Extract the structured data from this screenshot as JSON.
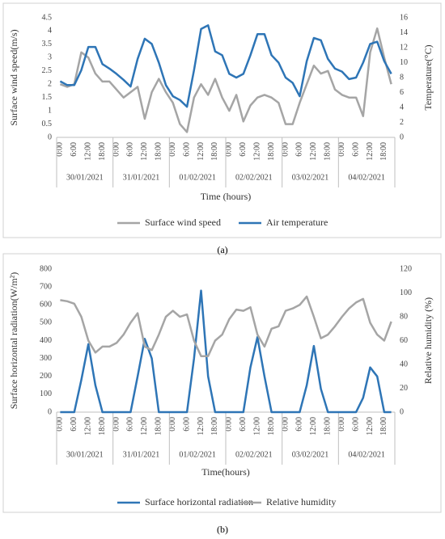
{
  "chart_data": [
    {
      "type": "line",
      "panel_label": "(a)",
      "xlabel": "Time (hours)",
      "ylabel": "Surface wind speed(m/s)",
      "y2label": "Temperature(°C)",
      "categories": [
        "0:00",
        null,
        "6:00",
        null,
        "12:00",
        null,
        "18:00",
        null,
        "0:00",
        null,
        "6:00",
        null,
        "12:00",
        null,
        "18:00",
        null,
        "0:00",
        null,
        "6:00",
        null,
        "12:00",
        null,
        "18:00",
        null,
        "0:00",
        null,
        "6:00",
        null,
        "12:00",
        null,
        "18:00",
        null,
        "0:00",
        null,
        "6:00",
        null,
        "12:00",
        null,
        "18:00",
        null,
        "0:00",
        null,
        "6:00",
        null,
        "12:00",
        null,
        "18:00",
        null
      ],
      "groups": [
        "30/01/2021",
        "31/01/2021",
        "01/02/2021",
        "02/02/2021",
        "03/02/2021",
        "04/02/2021"
      ],
      "ylim": [
        0,
        4.5
      ],
      "yticks": [
        0,
        0.5,
        1,
        1.5,
        2,
        2.5,
        3,
        3.5,
        4,
        4.5
      ],
      "y2lim": [
        0,
        16
      ],
      "y2ticks": [
        0,
        2,
        4,
        6,
        8,
        10,
        12,
        14,
        16
      ],
      "series": [
        {
          "name": "Surface wind speed",
          "color": "#a5a5a5",
          "axis": "y",
          "values": [
            2.0,
            1.9,
            2.0,
            3.2,
            3.0,
            2.4,
            2.1,
            2.1,
            1.8,
            1.5,
            1.7,
            1.9,
            0.7,
            1.7,
            2.2,
            1.7,
            1.3,
            0.5,
            0.2,
            1.5,
            2.0,
            1.6,
            2.2,
            1.5,
            1.0,
            1.6,
            0.6,
            1.2,
            1.5,
            1.6,
            1.5,
            1.3,
            0.5,
            0.5,
            1.3,
            2.0,
            2.7,
            2.4,
            2.5,
            1.8,
            1.6,
            1.5,
            1.5,
            0.8,
            3.2,
            4.1,
            3.0,
            2.0
          ]
        },
        {
          "name": "Air temperature",
          "color": "#2e75b6",
          "axis": "y2",
          "values": [
            7.5,
            7.0,
            7.0,
            9.0,
            12.1,
            12.1,
            9.8,
            9.2,
            8.5,
            7.7,
            6.8,
            10.5,
            13.2,
            12.5,
            10.0,
            7.0,
            5.5,
            5.0,
            4.1,
            9.0,
            14.5,
            15.0,
            11.5,
            11.0,
            8.5,
            8.0,
            8.5,
            11.0,
            13.8,
            13.8,
            11.0,
            10.0,
            8.0,
            7.3,
            5.5,
            10.2,
            13.3,
            13.0,
            10.5,
            9.2,
            8.8,
            7.8,
            8.0,
            10.0,
            12.5,
            12.8,
            10.2,
            8.5
          ]
        }
      ]
    },
    {
      "type": "line",
      "panel_label": "(b)",
      "xlabel": "Time(hours)",
      "ylabel": "Surface horizontal radiation(W/m²)",
      "y2label": "Relative humidity (%)",
      "categories": [
        "0:00",
        null,
        "6:00",
        null,
        "12:00",
        null,
        "18:00",
        null,
        "0:00",
        null,
        "6:00",
        null,
        "12:00",
        null,
        "18:00",
        null,
        "0:00",
        null,
        "6:00",
        null,
        "12:00",
        null,
        "18:00",
        null,
        "0:00",
        null,
        "6:00",
        null,
        "12:00",
        null,
        "18:00",
        null,
        "0:00",
        null,
        "6:00",
        null,
        "12:00",
        null,
        "18:00",
        null,
        "0:00",
        null,
        "6:00",
        null,
        "12:00",
        null,
        "18:00",
        null
      ],
      "groups": [
        "30/01/2021",
        "31/01/2021",
        "01/02/2021",
        "02/02/2021",
        "03/02/2021",
        "04/02/2021"
      ],
      "ylim": [
        0,
        800
      ],
      "yticks": [
        0,
        100,
        200,
        300,
        400,
        500,
        600,
        700,
        800
      ],
      "y2lim": [
        0,
        120
      ],
      "y2ticks": [
        0,
        20,
        40,
        60,
        80,
        100,
        120
      ],
      "series": [
        {
          "name": "Surface horizontal radiation",
          "color": "#2e75b6",
          "axis": "y",
          "values": [
            0,
            0,
            0,
            180,
            380,
            150,
            0,
            0,
            0,
            0,
            0,
            200,
            410,
            300,
            0,
            0,
            0,
            0,
            0,
            300,
            680,
            200,
            0,
            0,
            0,
            0,
            0,
            250,
            420,
            200,
            0,
            0,
            0,
            0,
            0,
            150,
            370,
            130,
            0,
            0,
            0,
            0,
            0,
            80,
            250,
            200,
            0,
            0
          ]
        },
        {
          "name": "Relative humidity",
          "color": "#a5a5a5",
          "axis": "y2",
          "values": [
            94,
            93,
            91,
            80,
            60,
            50,
            55,
            55,
            58,
            65,
            75,
            83,
            55,
            52,
            65,
            80,
            85,
            80,
            82,
            60,
            47,
            47,
            60,
            65,
            78,
            86,
            85,
            88,
            65,
            55,
            70,
            72,
            85,
            87,
            90,
            97,
            80,
            62,
            65,
            72,
            80,
            87,
            92,
            95,
            75,
            65,
            60,
            76
          ]
        }
      ]
    }
  ]
}
